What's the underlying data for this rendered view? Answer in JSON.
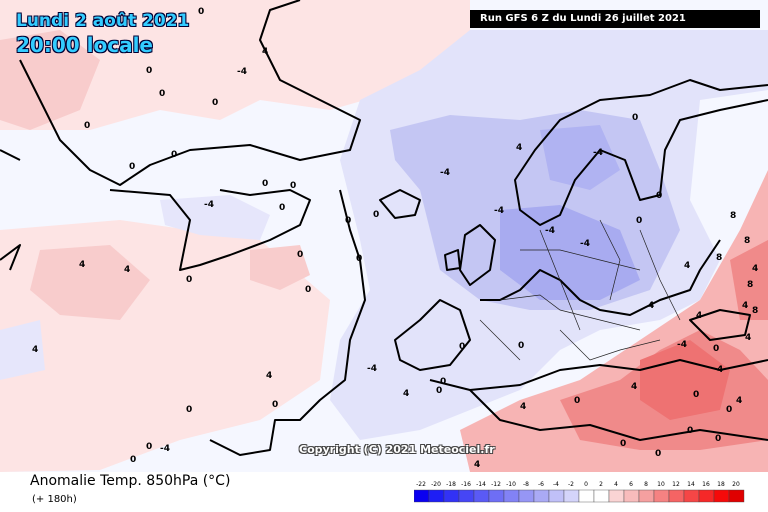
{
  "header": {
    "date_label": "Lundi 2 août 2021",
    "time_label": "20:00 locale",
    "run_label": "Run GFS 6 Z du Lundi 26 juillet 2021"
  },
  "footer": {
    "field_title": "Anomalie Temp. 850hPa (°C)",
    "lead_time": "(+ 180h)",
    "copyright": "Copyright (C) 2021 Meteociel.fr"
  },
  "legend": {
    "unit": "°C",
    "ticks": [
      "-22",
      "-20",
      "-18",
      "-16",
      "-14",
      "-12",
      "-10",
      "-8",
      "-6",
      "-4",
      "-2",
      "0",
      "2",
      "4",
      "6",
      "8",
      "10",
      "12",
      "14",
      "16",
      "18",
      "20"
    ],
    "colors": [
      "#0a00f0",
      "#1e1ef5",
      "#3232f5",
      "#4646f5",
      "#5a5af5",
      "#6e6ef5",
      "#8282f5",
      "#9696f5",
      "#aaaaf5",
      "#c0c0f8",
      "#d4d4fa",
      "#ffffff",
      "#ffffff",
      "#fad4d4",
      "#f8bcbc",
      "#f5a0a0",
      "#f58282",
      "#f56464",
      "#f54646",
      "#f52828",
      "#f50a0a",
      "#e00000"
    ]
  },
  "map": {
    "colors": {
      "strong_warm": "#f07070",
      "warm": "#f7b4b4",
      "light_warm": "#fde4e4",
      "neutral": "#ffffff",
      "light_cold": "#e6e6fb",
      "cold": "#c4c6f3",
      "strong_cold": "#a8abf0",
      "coast": "#000000"
    },
    "contour_labels": [
      "0",
      "4",
      "-4",
      "0",
      "0",
      "0",
      "0",
      "0",
      "0",
      "0",
      "0",
      "0",
      "-4",
      "4",
      "4",
      "0",
      "0",
      "0",
      "0",
      "0",
      "0",
      "4",
      "-4",
      "0",
      "4",
      "0",
      "0",
      "-4",
      "-4",
      "-4",
      "0",
      "0",
      "4",
      "-4",
      "-4",
      "0",
      "4",
      "0",
      "4",
      "-4",
      "0",
      "0",
      "0",
      "0",
      "0",
      "0",
      "0",
      "4",
      "4",
      "8",
      "8",
      "8",
      "8",
      "8",
      "4",
      "4",
      "4",
      "0",
      "0",
      "0",
      "0",
      "-4",
      "4",
      "4",
      "0",
      "4",
      "4",
      "4"
    ]
  }
}
